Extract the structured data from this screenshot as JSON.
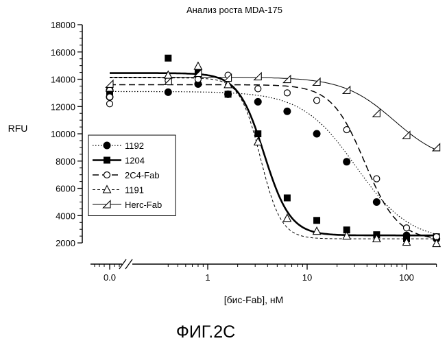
{
  "chart_data": {
    "type": "scatter",
    "title": "Анализ роста MDA-175",
    "xlabel": "[бис-Fab], нМ",
    "ylabel": "RFU",
    "figure_caption": "ФИГ.2С",
    "x_scale": "log",
    "x_axis_break": true,
    "xlim": [
      0.4,
      200
    ],
    "ylim": [
      1200,
      18000
    ],
    "x_ticks": [
      {
        "value": 0,
        "label": "0.0"
      },
      {
        "value": 1,
        "label": "1"
      },
      {
        "value": 10,
        "label": "10"
      },
      {
        "value": 100,
        "label": "100"
      }
    ],
    "y_ticks": [
      2000,
      4000,
      6000,
      8000,
      10000,
      12000,
      14000,
      16000,
      18000
    ],
    "grid": false,
    "legend_position": "left-middle",
    "series": [
      {
        "name": "1192",
        "marker": "filled-circle",
        "line": "dotted",
        "points": [
          [
            0,
            12700
          ],
          [
            0,
            13200
          ],
          [
            0.4,
            13050
          ],
          [
            0.8,
            13650
          ],
          [
            1.6,
            12900
          ],
          [
            3.2,
            12350
          ],
          [
            6.3,
            11650
          ],
          [
            12.5,
            10000
          ],
          [
            25,
            7950
          ],
          [
            50,
            5000
          ],
          [
            100,
            2550
          ],
          [
            200,
            2300
          ]
        ],
        "fit": {
          "top": 13100,
          "bottom": 2100,
          "ec50": 31,
          "hill": 1.6
        }
      },
      {
        "name": "1204",
        "marker": "filled-square",
        "line": "thick-solid",
        "points": [
          [
            0,
            13100
          ],
          [
            0,
            12900
          ],
          [
            0.4,
            15550
          ],
          [
            0.8,
            14500
          ],
          [
            1.6,
            12900
          ],
          [
            3.2,
            10000
          ],
          [
            6.3,
            5300
          ],
          [
            12.5,
            3650
          ],
          [
            25,
            2950
          ],
          [
            50,
            2600
          ],
          [
            100,
            2300
          ],
          [
            200,
            2450
          ]
        ],
        "fit": {
          "top": 14450,
          "bottom": 2550,
          "ec50": 3.7,
          "hill": 3.3
        }
      },
      {
        "name": "2C4-Fab",
        "marker": "open-circle",
        "line": "dashed",
        "points": [
          [
            0,
            12200
          ],
          [
            0,
            12700
          ],
          [
            0.4,
            13900
          ],
          [
            0.8,
            14000
          ],
          [
            1.6,
            14300
          ],
          [
            3.2,
            13300
          ],
          [
            6.3,
            13000
          ],
          [
            12.5,
            12450
          ],
          [
            25,
            10300
          ],
          [
            50,
            6700
          ],
          [
            100,
            3100
          ],
          [
            200,
            2450
          ]
        ],
        "fit": {
          "top": 13600,
          "bottom": 2200,
          "ec50": 38,
          "hill": 2.6
        }
      },
      {
        "name": "1191",
        "marker": "open-triangle",
        "line": "short-dashed",
        "points": [
          [
            0,
            13350
          ],
          [
            0.4,
            14300
          ],
          [
            0.8,
            14950
          ],
          [
            1.6,
            13600
          ],
          [
            3.2,
            9400
          ],
          [
            6.3,
            3800
          ],
          [
            12.5,
            2850
          ],
          [
            25,
            2500
          ],
          [
            50,
            2300
          ],
          [
            100,
            2050
          ],
          [
            200,
            1950
          ]
        ],
        "fit": {
          "top": 14100,
          "bottom": 2300,
          "ec50": 3.4,
          "hill": 4.2
        }
      },
      {
        "name": "Herc-Fab",
        "marker": "open-left-triangle",
        "line": "thin-solid",
        "points": [
          [
            0,
            13650
          ],
          [
            0.4,
            13850
          ],
          [
            0.8,
            14450
          ],
          [
            1.6,
            14100
          ],
          [
            3.2,
            14200
          ],
          [
            6.3,
            14000
          ],
          [
            12.5,
            13800
          ],
          [
            25,
            13200
          ],
          [
            50,
            11500
          ],
          [
            100,
            9900
          ],
          [
            200,
            9000
          ]
        ],
        "fit": {
          "top": 14150,
          "bottom": 7800,
          "ec50": 75,
          "hill": 1.7
        }
      }
    ]
  }
}
